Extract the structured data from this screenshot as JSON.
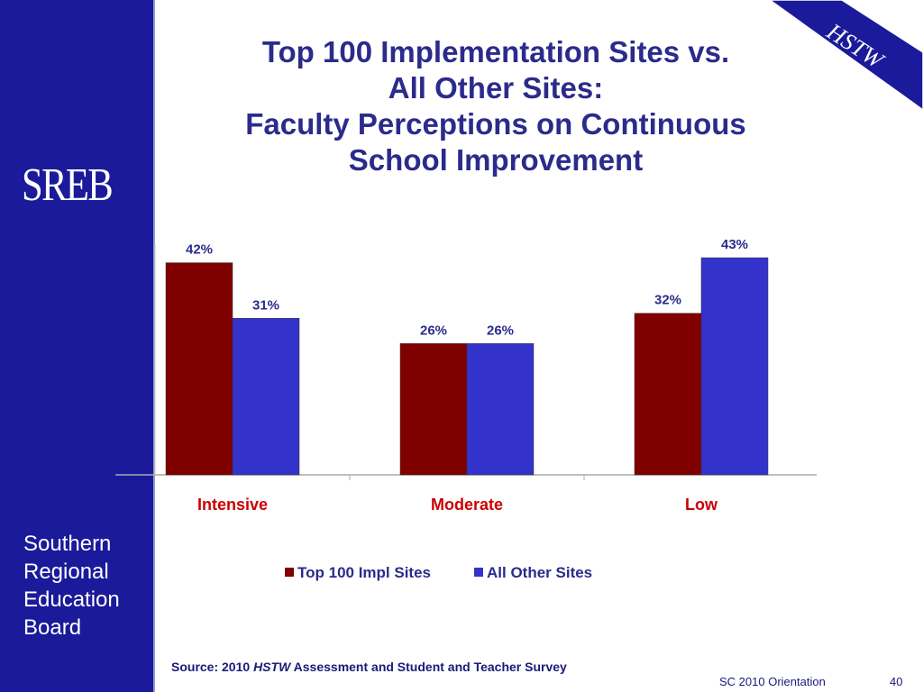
{
  "slide": {
    "title_lines": [
      "Top 100 Implementation Sites vs.",
      "All Other Sites:",
      "Faculty Perceptions on Continuous",
      "School Improvement"
    ],
    "corner_badge": "HSTW",
    "logo": "SREB",
    "org_name_lines": [
      "Southern",
      "Regional",
      "Education",
      "Board"
    ],
    "source": {
      "prefix": "Source: 2010 ",
      "italic": "HSTW",
      "suffix": " Assessment and Student and Teacher Survey"
    },
    "footer_label": "SC 2010 Orientation",
    "page_number": "40"
  },
  "colors": {
    "sidebar": "#1a1a9a",
    "title": "#2b2b8c",
    "category_label": "#cc0000",
    "series_top100": "#800000",
    "series_other": "#3333cc"
  },
  "chart_data": {
    "type": "bar",
    "title": "",
    "xlabel": "",
    "ylabel": "",
    "categories": [
      "Intensive",
      "Moderate",
      "Low"
    ],
    "series": [
      {
        "name": "Top 100 Impl Sites",
        "values": [
          42,
          26,
          32
        ],
        "labels": [
          "42%",
          "26%",
          "32%"
        ]
      },
      {
        "name": "All Other Sites",
        "values": [
          31,
          26,
          43
        ],
        "labels": [
          "31%",
          "26%",
          "43%"
        ]
      }
    ],
    "ylim": [
      0,
      43
    ],
    "grid": false,
    "legend_position": "bottom"
  }
}
